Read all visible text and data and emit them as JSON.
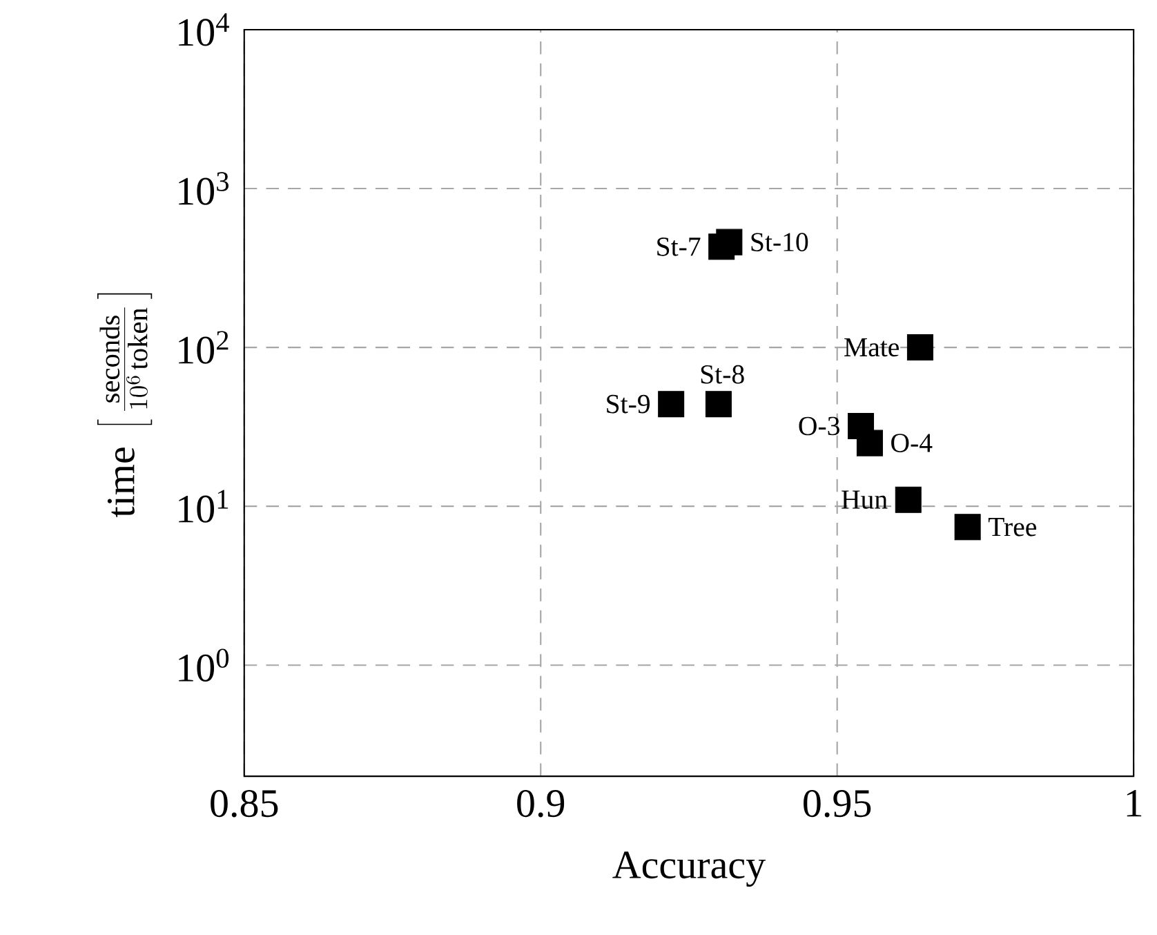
{
  "chart_data": {
    "type": "scatter",
    "xlabel": "Accuracy",
    "ylabel": "\\mathrm{time}\\ \\left[\\,\\frac{\\mathrm{seconds}}{10^{6}\\,\\mathrm{token}}\\,\\right]",
    "log": "y",
    "grid": true,
    "marker": "square",
    "xlim": [
      0.85,
      1
    ],
    "ylim": [
      0.2,
      10000
    ],
    "xticks": [
      0.85,
      0.9,
      0.95,
      1
    ],
    "yticks": [
      {
        "value": 1,
        "label": "10$^{0}$"
      },
      {
        "value": 10,
        "label": "10$^{1}$"
      },
      {
        "value": 100,
        "label": "10$^{2}$"
      },
      {
        "value": 1000,
        "label": "10$^{3}$"
      },
      {
        "value": 10000,
        "label": "10$^{4}$"
      }
    ],
    "series": [
      {
        "color": "#000000",
        "x": [
          0.9305,
          0.9318,
          0.93,
          0.922,
          0.964,
          0.954,
          0.9555,
          0.962,
          0.972
        ],
        "values": [
          430,
          460,
          44,
          44,
          100,
          32,
          25,
          11,
          7.4
        ]
      }
    ],
    "annotations": [
      {
        "text": "St-7",
        "x": 0.9305,
        "y": 430
      },
      {
        "text": "St-10",
        "x": 0.9318,
        "y": 460
      },
      {
        "text": "St-8",
        "x": 0.93,
        "y": 44
      },
      {
        "text": "St-9",
        "x": 0.922,
        "y": 44
      },
      {
        "text": "Mate",
        "x": 0.964,
        "y": 100
      },
      {
        "text": "O-3",
        "x": 0.954,
        "y": 32
      },
      {
        "text": "O-4",
        "x": 0.9555,
        "y": 25
      },
      {
        "text": "Hun",
        "x": 0.962,
        "y": 11
      },
      {
        "text": "Tree",
        "x": 0.972,
        "y": 7.4
      }
    ]
  }
}
